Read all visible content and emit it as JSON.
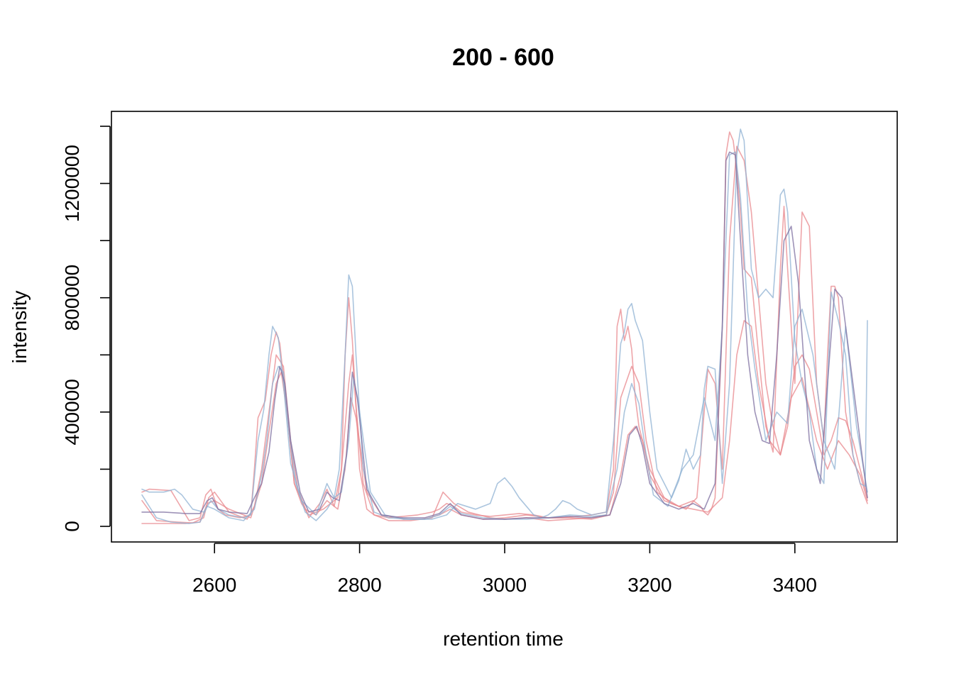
{
  "chart_data": {
    "type": "line",
    "title": "200 - 600",
    "xlabel": "retention time",
    "ylabel": "intensity",
    "xlim": [
      2500,
      3500
    ],
    "ylim": [
      0,
      1400000
    ],
    "xticks": [
      2600,
      2800,
      3000,
      3200,
      3400
    ],
    "yticks": [
      0,
      400000,
      800000,
      1200000
    ],
    "ytick_labels": [
      "0",
      "400000",
      "800000",
      "1200000"
    ],
    "grid": false,
    "legend": "none",
    "colors": {
      "red": "#e8878c",
      "blue": "#8fb1d3",
      "purple": "#7d6fa0"
    },
    "series": [
      {
        "color": "red",
        "x": [
          2500,
          2510,
          2540,
          2565,
          2580,
          2588,
          2595,
          2605,
          2615,
          2635,
          2650,
          2655,
          2660,
          2665,
          2670,
          2678,
          2685,
          2690,
          2700,
          2710,
          2720,
          2730,
          2740,
          2750,
          2760,
          2770,
          2775,
          2780,
          2785,
          2790,
          2800,
          2810,
          2820,
          2840,
          2860,
          2880,
          2900,
          2910,
          2920,
          2930,
          2940,
          2960,
          2980,
          3000,
          3020,
          3040,
          3060,
          3080,
          3100,
          3120,
          3140,
          3150,
          3155,
          3160,
          3165,
          3170,
          3175,
          3180,
          3185,
          3200,
          3220,
          3240,
          3250,
          3260,
          3270,
          3275,
          3280,
          3285,
          3290,
          3300,
          3305,
          3310,
          3315,
          3320,
          3325,
          3330,
          3340,
          3350,
          3360,
          3370,
          3380,
          3385,
          3390,
          3400,
          3410,
          3420,
          3430,
          3440,
          3445,
          3450,
          3455,
          3460,
          3470,
          3480,
          3490,
          3500
        ],
        "y": [
          120000,
          130000,
          125000,
          20000,
          30000,
          110000,
          130000,
          60000,
          40000,
          30000,
          40000,
          200000,
          380000,
          410000,
          440000,
          600000,
          680000,
          640000,
          400000,
          150000,
          80000,
          40000,
          50000,
          60000,
          80000,
          100000,
          200000,
          600000,
          800000,
          650000,
          200000,
          60000,
          40000,
          30000,
          35000,
          40000,
          50000,
          60000,
          80000,
          70000,
          50000,
          40000,
          35000,
          40000,
          45000,
          40000,
          30000,
          30000,
          35000,
          40000,
          50000,
          200000,
          700000,
          760000,
          650000,
          700000,
          620000,
          450000,
          350000,
          200000,
          100000,
          70000,
          80000,
          90000,
          70000,
          50000,
          40000,
          60000,
          100000,
          700000,
          1300000,
          1380000,
          1350000,
          1250000,
          1100000,
          900000,
          870000,
          600000,
          350000,
          260000,
          900000,
          1120000,
          900000,
          500000,
          1100000,
          1050000,
          500000,
          300000,
          600000,
          840000,
          840000,
          800000,
          400000,
          250000,
          150000,
          80000
        ]
      },
      {
        "color": "red",
        "x": [
          2500,
          2520,
          2550,
          2570,
          2585,
          2592,
          2600,
          2620,
          2645,
          2655,
          2665,
          2675,
          2685,
          2695,
          2705,
          2715,
          2730,
          2745,
          2755,
          2765,
          2775,
          2785,
          2790,
          2795,
          2805,
          2820,
          2840,
          2870,
          2900,
          2915,
          2930,
          2950,
          2980,
          3000,
          3030,
          3060,
          3090,
          3120,
          3140,
          3150,
          3160,
          3175,
          3185,
          3195,
          3210,
          3230,
          3250,
          3265,
          3280,
          3290,
          3300,
          3310,
          3320,
          3330,
          3340,
          3350,
          3360,
          3370,
          3380,
          3390,
          3400,
          3410,
          3420,
          3430,
          3440,
          3450,
          3460,
          3470,
          3480,
          3490,
          3500
        ],
        "y": [
          90000,
          20000,
          15000,
          12000,
          30000,
          100000,
          120000,
          50000,
          25000,
          70000,
          200000,
          400000,
          600000,
          560000,
          300000,
          130000,
          30000,
          80000,
          130000,
          70000,
          200000,
          500000,
          600000,
          420000,
          150000,
          40000,
          20000,
          20000,
          30000,
          120000,
          80000,
          50000,
          30000,
          25000,
          30000,
          20000,
          25000,
          30000,
          40000,
          120000,
          450000,
          560000,
          500000,
          300000,
          120000,
          80000,
          60000,
          100000,
          550000,
          500000,
          200000,
          1000000,
          1330000,
          1280000,
          1100000,
          800000,
          500000,
          350000,
          250000,
          350000,
          560000,
          600000,
          550000,
          400000,
          250000,
          300000,
          380000,
          370000,
          300000,
          200000,
          100000
        ]
      },
      {
        "color": "red",
        "x": [
          2500,
          2530,
          2560,
          2580,
          2590,
          2600,
          2620,
          2650,
          2665,
          2675,
          2685,
          2692,
          2700,
          2710,
          2725,
          2740,
          2755,
          2770,
          2780,
          2788,
          2795,
          2810,
          2830,
          2860,
          2890,
          2910,
          2925,
          2940,
          2970,
          3000,
          3030,
          3060,
          3090,
          3120,
          3145,
          3160,
          3170,
          3180,
          3190,
          3200,
          3220,
          3240,
          3260,
          3280,
          3300,
          3310,
          3320,
          3330,
          3340,
          3350,
          3365,
          3380,
          3395,
          3410,
          3430,
          3445,
          3460,
          3475,
          3490,
          3500
        ],
        "y": [
          10000,
          10000,
          10000,
          15000,
          80000,
          90000,
          60000,
          30000,
          150000,
          330000,
          500000,
          540000,
          400000,
          150000,
          60000,
          40000,
          90000,
          60000,
          200000,
          450000,
          380000,
          120000,
          40000,
          25000,
          25000,
          40000,
          60000,
          40000,
          25000,
          30000,
          40000,
          30000,
          30000,
          25000,
          40000,
          180000,
          320000,
          350000,
          300000,
          180000,
          90000,
          70000,
          60000,
          50000,
          100000,
          300000,
          600000,
          720000,
          700000,
          500000,
          300000,
          250000,
          450000,
          520000,
          300000,
          200000,
          300000,
          250000,
          180000,
          90000
        ]
      },
      {
        "color": "blue",
        "x": [
          2500,
          2510,
          2530,
          2545,
          2555,
          2570,
          2585,
          2595,
          2605,
          2620,
          2640,
          2650,
          2660,
          2668,
          2675,
          2680,
          2688,
          2695,
          2705,
          2720,
          2740,
          2755,
          2765,
          2772,
          2780,
          2785,
          2790,
          2795,
          2805,
          2820,
          2840,
          2870,
          2900,
          2920,
          2935,
          2960,
          2980,
          2990,
          3000,
          3010,
          3020,
          3030,
          3040,
          3050,
          3060,
          3070,
          3080,
          3090,
          3100,
          3110,
          3120,
          3140,
          3150,
          3160,
          3165,
          3170,
          3175,
          3180,
          3190,
          3200,
          3210,
          3230,
          3240,
          3250,
          3260,
          3270,
          3275,
          3280,
          3290,
          3300,
          3310,
          3320,
          3325,
          3330,
          3340,
          3350,
          3360,
          3370,
          3380,
          3385,
          3390,
          3400,
          3410,
          3420,
          3430,
          3440,
          3450,
          3460,
          3470,
          3480,
          3490,
          3497,
          3500
        ],
        "y": [
          130000,
          120000,
          120000,
          130000,
          110000,
          60000,
          50000,
          90000,
          60000,
          40000,
          30000,
          40000,
          300000,
          410000,
          600000,
          700000,
          660000,
          500000,
          220000,
          90000,
          40000,
          150000,
          100000,
          200000,
          600000,
          880000,
          840000,
          600000,
          200000,
          50000,
          30000,
          25000,
          25000,
          40000,
          80000,
          60000,
          80000,
          150000,
          170000,
          140000,
          100000,
          70000,
          40000,
          30000,
          40000,
          60000,
          90000,
          80000,
          60000,
          50000,
          40000,
          50000,
          300000,
          640000,
          680000,
          760000,
          780000,
          720000,
          650000,
          400000,
          200000,
          100000,
          160000,
          270000,
          200000,
          250000,
          480000,
          560000,
          550000,
          150000,
          500000,
          1300000,
          1390000,
          1350000,
          900000,
          800000,
          830000,
          800000,
          1160000,
          1180000,
          1100000,
          650000,
          500000,
          400000,
          200000,
          150000,
          820000,
          720000,
          600000,
          250000,
          150000,
          140000,
          720000
        ]
      },
      {
        "color": "blue",
        "x": [
          2500,
          2520,
          2540,
          2565,
          2580,
          2590,
          2600,
          2620,
          2640,
          2655,
          2665,
          2672,
          2680,
          2688,
          2695,
          2702,
          2712,
          2725,
          2740,
          2755,
          2765,
          2775,
          2785,
          2792,
          2800,
          2815,
          2835,
          2860,
          2890,
          2910,
          2925,
          2940,
          2970,
          3000,
          3030,
          3060,
          3090,
          3120,
          3140,
          3155,
          3165,
          3175,
          3185,
          3195,
          3205,
          3225,
          3245,
          3260,
          3275,
          3290,
          3300,
          3310,
          3318,
          3325,
          3335,
          3345,
          3360,
          3375,
          3390,
          3400,
          3410,
          3425,
          3440,
          3455,
          3470,
          3485,
          3500
        ],
        "y": [
          110000,
          30000,
          15000,
          10000,
          15000,
          70000,
          60000,
          30000,
          20000,
          60000,
          180000,
          300000,
          500000,
          560000,
          540000,
          350000,
          150000,
          50000,
          20000,
          60000,
          100000,
          120000,
          300000,
          520000,
          400000,
          120000,
          40000,
          25000,
          25000,
          40000,
          70000,
          45000,
          30000,
          25000,
          25000,
          30000,
          40000,
          35000,
          40000,
          200000,
          400000,
          500000,
          430000,
          250000,
          110000,
          70000,
          200000,
          250000,
          450000,
          300000,
          700000,
          1300000,
          1310000,
          1150000,
          750000,
          550000,
          300000,
          400000,
          360000,
          700000,
          760000,
          600000,
          300000,
          200000,
          700000,
          350000,
          120000
        ]
      },
      {
        "color": "purple",
        "x": [
          2500,
          2530,
          2560,
          2580,
          2590,
          2597,
          2605,
          2620,
          2645,
          2655,
          2665,
          2675,
          2683,
          2690,
          2697,
          2705,
          2718,
          2730,
          2745,
          2755,
          2763,
          2772,
          2782,
          2790,
          2797,
          2810,
          2830,
          2860,
          2890,
          2910,
          2925,
          2940,
          2970,
          3000,
          3030,
          3060,
          3090,
          3120,
          3145,
          3160,
          3172,
          3182,
          3190,
          3200,
          3220,
          3240,
          3260,
          3275,
          3290,
          3300,
          3305,
          3310,
          3318,
          3325,
          3335,
          3345,
          3355,
          3365,
          3375,
          3385,
          3395,
          3405,
          3420,
          3435,
          3445,
          3455,
          3465,
          3480,
          3500
        ],
        "y": [
          50000,
          50000,
          45000,
          45000,
          90000,
          100000,
          60000,
          50000,
          45000,
          100000,
          150000,
          260000,
          440000,
          560000,
          500000,
          300000,
          120000,
          50000,
          60000,
          120000,
          100000,
          90000,
          250000,
          540000,
          450000,
          130000,
          40000,
          30000,
          30000,
          45000,
          80000,
          40000,
          25000,
          25000,
          30000,
          30000,
          35000,
          30000,
          40000,
          150000,
          320000,
          350000,
          280000,
          150000,
          80000,
          60000,
          80000,
          60000,
          150000,
          700000,
          1280000,
          1310000,
          1300000,
          1000000,
          600000,
          400000,
          300000,
          290000,
          600000,
          1000000,
          1050000,
          850000,
          300000,
          150000,
          500000,
          830000,
          800000,
          500000,
          100000
        ]
      }
    ]
  }
}
